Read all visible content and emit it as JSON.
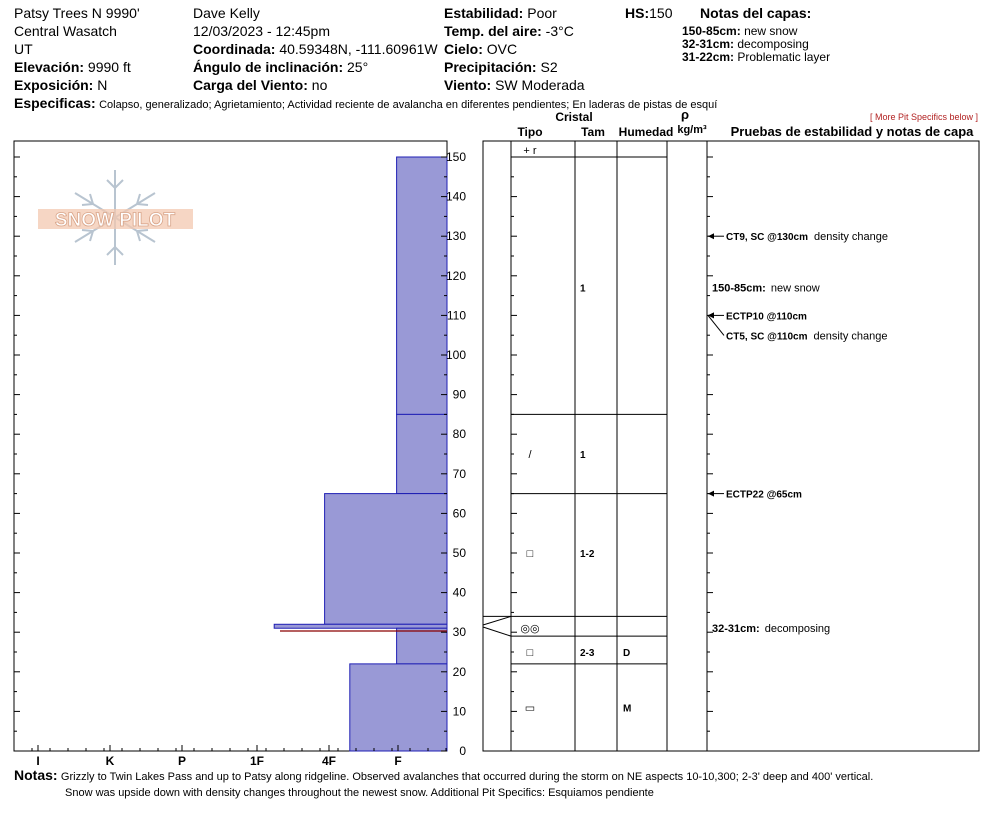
{
  "header": {
    "location": "Patsy Trees N 9990'",
    "range": "Central Wasatch",
    "state": "UT",
    "elevation_label": "Elevación:",
    "elevation_value": "9990 ft",
    "aspect_label": "Exposición:",
    "aspect_value": "N",
    "observer": "Dave Kelly",
    "datetime": "12/03/2023 - 12:45pm",
    "coords_label": "Coordinada:",
    "coords_value": "40.59348N, -111.60961W",
    "slope_label": "Ángulo de inclinación:",
    "slope_value": "25°",
    "wind_load_label": "Carga del Viento:",
    "wind_load_value": "no",
    "stability_label": "Estabilidad:",
    "stability_value": "Poor",
    "air_temp_label": "Temp. del aire:",
    "air_temp_value": "-3°C",
    "sky_label": "Cielo:",
    "sky_value": "OVC",
    "precip_label": "Precipitación:",
    "precip_value": "S2",
    "wind_label": "Viento:",
    "wind_value": "SW Moderada",
    "hs_label": "HS:",
    "hs_value": "150",
    "layer_notes_title": "Notas del capas:",
    "layer_notes": [
      {
        "range": "150-85cm:",
        "note": "new snow"
      },
      {
        "range": "32-31cm:",
        "note": "decomposing"
      },
      {
        "range": "31-22cm:",
        "note": "Problematic layer"
      }
    ],
    "specifics_label": "Especificas:",
    "specifics_value": "Colapso, generalizado;  Agrietamiento;  Actividad reciente de avalancha en diferentes pendientes;  En laderas de pistas de esquí"
  },
  "more_specifics_link": "[ More Pit Specifics below ]",
  "column_headers": {
    "crystal": "Cristal",
    "type": "Tipo",
    "size": "Tam",
    "moisture": "Humedad",
    "rho": "ρ",
    "density_unit": "kg/m³",
    "tests": "Pruebas de estabilidad y notas de capa"
  },
  "logo": "SNOW PILOT",
  "chart_data": {
    "type": "snow-profile",
    "y_unit": "cm",
    "ylim": [
      0,
      150
    ],
    "yticks": [
      0,
      10,
      20,
      30,
      40,
      50,
      60,
      70,
      80,
      90,
      100,
      110,
      120,
      130,
      140,
      150
    ],
    "hardness_scale": [
      "I",
      "K",
      "P",
      "1F",
      "4F",
      "F"
    ],
    "hardness_layers": [
      {
        "top": 150,
        "bottom": 85,
        "hardness": 0.7
      },
      {
        "top": 85,
        "bottom": 65,
        "hardness": 0.7
      },
      {
        "top": 65,
        "bottom": 32,
        "hardness": 1.7
      },
      {
        "top": 32,
        "bottom": 31,
        "hardness": 2.4
      },
      {
        "top": 31,
        "bottom": 22,
        "hardness": 0.7
      },
      {
        "top": 22,
        "bottom": 0,
        "hardness": 1.35
      }
    ],
    "layer_boundaries": [
      150,
      85,
      65,
      34,
      29,
      22
    ],
    "crystals": [
      {
        "depth": 150,
        "symbol": "+ r",
        "size": "",
        "moisture": ""
      },
      {
        "depth": 117,
        "symbol": "",
        "size": "1",
        "moisture": ""
      },
      {
        "depth": 75,
        "symbol": "/",
        "size": "1",
        "moisture": ""
      },
      {
        "depth": 50,
        "symbol": "□",
        "size": "1-2",
        "moisture": ""
      },
      {
        "depth": 31,
        "symbol": "◎◎",
        "size": "",
        "moisture": ""
      },
      {
        "depth": 25,
        "symbol": "□",
        "size": "2-3",
        "moisture": "D"
      },
      {
        "depth": 11,
        "symbol": "▭",
        "size": "",
        "moisture": "M"
      }
    ],
    "tests": [
      {
        "depth": 130,
        "result": "CT9, SC @130cm",
        "note": "density change"
      },
      {
        "depth": 110,
        "result": "ECTP10 @110cm",
        "note": ""
      },
      {
        "depth": 110,
        "result": "CT5, SC @110cm",
        "note": "density change"
      },
      {
        "depth": 65,
        "result": "ECTP22 @65cm",
        "note": ""
      }
    ],
    "layer_notes": [
      {
        "depth": 117,
        "range": "150-85cm:",
        "note": "new snow"
      },
      {
        "depth": 31,
        "range": "32-31cm:",
        "note": "decomposing"
      }
    ]
  },
  "notes": {
    "label": "Notas:",
    "line1": "Grizzly to Twin Lakes Pass and up to Patsy along ridgeline. Observed avalanches that occurred during the storm on NE aspects 10-10,300; 2-3' deep and 400' vertical.",
    "line2": "Snow was upside down with density changes throughout the newest snow. Additional Pit Specifics: Esquiamos pendiente"
  }
}
